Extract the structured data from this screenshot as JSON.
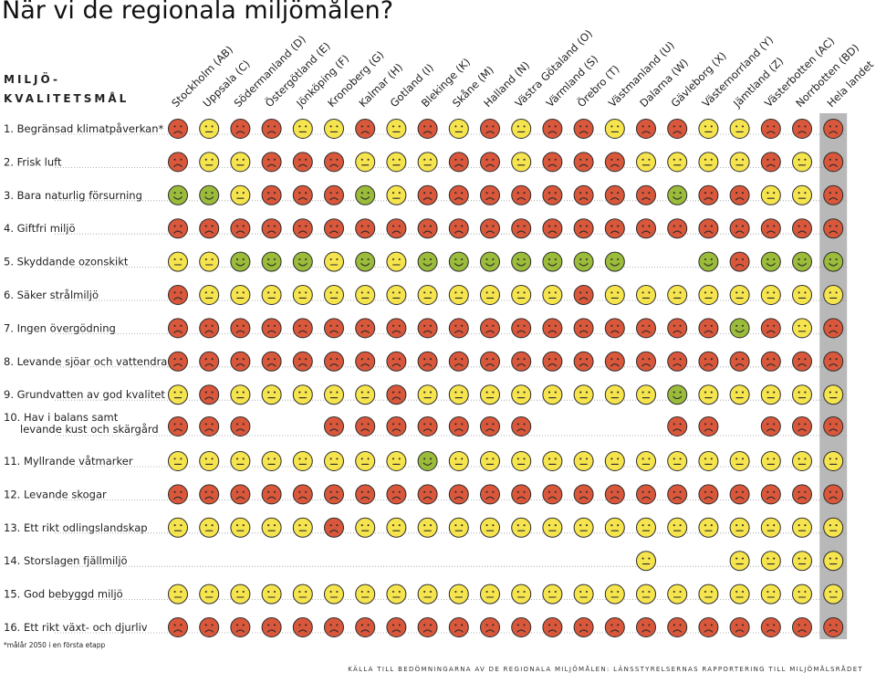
{
  "title": "När vi de regionala miljömålen?",
  "section_label_line1": "MILJÖ-",
  "section_label_line2": "KVALITETSMÅL",
  "footnote": "*målår 2050 i en första etapp",
  "source": "KÄLLA TILL BEDÖMNINGARNA AV DE REGIONALA MILJÖMÅLEN: LÄNSSTYRELSERNAS RAPPORTERING TILL MILJÖMÅLSRÅDET",
  "colors": {
    "red": "#d9573b",
    "yellow": "#f5e44e",
    "green": "#9bbb3a",
    "highlight": "#b8b8b8",
    "face_line": "#2b2b2b"
  },
  "chart_data": {
    "type": "table",
    "legend": {
      "r": "red frowning face",
      "y": "yellow neutral face",
      "g": "green smiling face",
      "": "no assessment"
    },
    "regions": [
      "Stockholm (AB)",
      "Uppsala (C)",
      "Södermanland (D)",
      "Östergötland (E)",
      "Jönköping (F)",
      "Kronoberg (G)",
      "Kalmar (H)",
      "Gotland (I)",
      "Blekinge (K)",
      "Skåne (M)",
      "Halland (N)",
      "Västra Götaland (O)",
      "Värmland (S)",
      "Örebro (T)",
      "Västmanland (U)",
      "Dalarna (W)",
      "Gävleborg (X)",
      "Västernorrland (Y)",
      "Jämtland (Z)",
      "Västerbotten (AC)",
      "Norrbotten (BD)",
      "Hela landet"
    ],
    "goals": [
      {
        "label": "1. Begränsad klimatpåverkan*",
        "cells": [
          "r",
          "y",
          "r",
          "r",
          "y",
          "y",
          "r",
          "y",
          "r",
          "y",
          "r",
          "y",
          "r",
          "r",
          "y",
          "r",
          "r",
          "y",
          "y",
          "r",
          "r",
          "r"
        ]
      },
      {
        "label": "2. Frisk luft",
        "cells": [
          "r",
          "y",
          "y",
          "r",
          "r",
          "r",
          "y",
          "y",
          "y",
          "r",
          "r",
          "y",
          "r",
          "r",
          "r",
          "y",
          "y",
          "y",
          "y",
          "r",
          "y",
          "r"
        ]
      },
      {
        "label": "3. Bara naturlig försurning",
        "cells": [
          "g",
          "g",
          "y",
          "r",
          "r",
          "r",
          "g",
          "y",
          "r",
          "r",
          "r",
          "r",
          "r",
          "r",
          "r",
          "r",
          "g",
          "r",
          "r",
          "y",
          "y",
          "r"
        ]
      },
      {
        "label": "4. Giftfri miljö",
        "cells": [
          "r",
          "r",
          "r",
          "r",
          "r",
          "r",
          "r",
          "r",
          "r",
          "r",
          "r",
          "r",
          "r",
          "r",
          "r",
          "r",
          "r",
          "r",
          "r",
          "r",
          "r",
          "r"
        ]
      },
      {
        "label": "5. Skyddande ozonskikt",
        "cells": [
          "y",
          "y",
          "g",
          "g",
          "g",
          "y",
          "g",
          "y",
          "g",
          "g",
          "g",
          "g",
          "g",
          "g",
          "g",
          "",
          "",
          "g",
          "r",
          "g",
          "g",
          "g"
        ]
      },
      {
        "label": "6. Säker strålmiljö",
        "cells": [
          "r",
          "y",
          "y",
          "y",
          "y",
          "y",
          "y",
          "y",
          "y",
          "y",
          "y",
          "y",
          "y",
          "r",
          "y",
          "y",
          "y",
          "y",
          "y",
          "y",
          "y",
          "y"
        ]
      },
      {
        "label": "7. Ingen övergödning",
        "cells": [
          "r",
          "r",
          "r",
          "r",
          "r",
          "r",
          "r",
          "r",
          "r",
          "r",
          "r",
          "r",
          "r",
          "r",
          "r",
          "r",
          "r",
          "r",
          "g",
          "r",
          "y",
          "r"
        ]
      },
      {
        "label": "8. Levande sjöar och vattendrag",
        "cells": [
          "r",
          "r",
          "r",
          "r",
          "r",
          "r",
          "r",
          "r",
          "r",
          "r",
          "r",
          "r",
          "r",
          "r",
          "r",
          "r",
          "r",
          "r",
          "r",
          "r",
          "r",
          "r"
        ]
      },
      {
        "label": "9. Grundvatten av god kvalitet",
        "cells": [
          "y",
          "r",
          "y",
          "y",
          "y",
          "y",
          "y",
          "r",
          "y",
          "y",
          "y",
          "y",
          "y",
          "y",
          "y",
          "y",
          "g",
          "y",
          "y",
          "y",
          "y",
          "y"
        ]
      },
      {
        "label": "10. Hav i balans samt levande kust och skärgård",
        "cells": [
          "r",
          "r",
          "r",
          "",
          "",
          "r",
          "r",
          "r",
          "r",
          "r",
          "r",
          "r",
          "",
          "",
          "",
          "",
          "r",
          "r",
          "",
          "r",
          "r",
          "r"
        ]
      },
      {
        "label": "11. Myllrande våtmarker",
        "cells": [
          "y",
          "y",
          "y",
          "y",
          "y",
          "y",
          "y",
          "y",
          "g",
          "y",
          "y",
          "y",
          "y",
          "y",
          "y",
          "y",
          "y",
          "y",
          "y",
          "y",
          "y",
          "y"
        ]
      },
      {
        "label": "12. Levande skogar",
        "cells": [
          "r",
          "r",
          "r",
          "r",
          "r",
          "r",
          "r",
          "r",
          "r",
          "r",
          "r",
          "r",
          "r",
          "r",
          "r",
          "r",
          "r",
          "r",
          "r",
          "r",
          "r",
          "r"
        ]
      },
      {
        "label": "13. Ett rikt odlingslandskap",
        "cells": [
          "y",
          "y",
          "y",
          "y",
          "y",
          "r",
          "y",
          "y",
          "y",
          "y",
          "y",
          "y",
          "y",
          "y",
          "y",
          "y",
          "y",
          "y",
          "y",
          "y",
          "y",
          "y"
        ]
      },
      {
        "label": "14. Storslagen fjällmiljö",
        "cells": [
          "",
          "",
          "",
          "",
          "",
          "",
          "",
          "",
          "",
          "",
          "",
          "",
          "",
          "",
          "",
          "y",
          "",
          "",
          "y",
          "y",
          "y",
          "y"
        ]
      },
      {
        "label": "15. God bebyggd miljö",
        "cells": [
          "y",
          "y",
          "y",
          "y",
          "y",
          "y",
          "y",
          "y",
          "y",
          "y",
          "y",
          "y",
          "y",
          "y",
          "y",
          "y",
          "y",
          "y",
          "y",
          "y",
          "y",
          "y"
        ]
      },
      {
        "label": "16. Ett rikt växt- och djurliv",
        "cells": [
          "r",
          "r",
          "r",
          "r",
          "r",
          "r",
          "r",
          "r",
          "r",
          "r",
          "r",
          "r",
          "r",
          "r",
          "r",
          "r",
          "r",
          "r",
          "r",
          "r",
          "r",
          "r"
        ]
      }
    ]
  }
}
